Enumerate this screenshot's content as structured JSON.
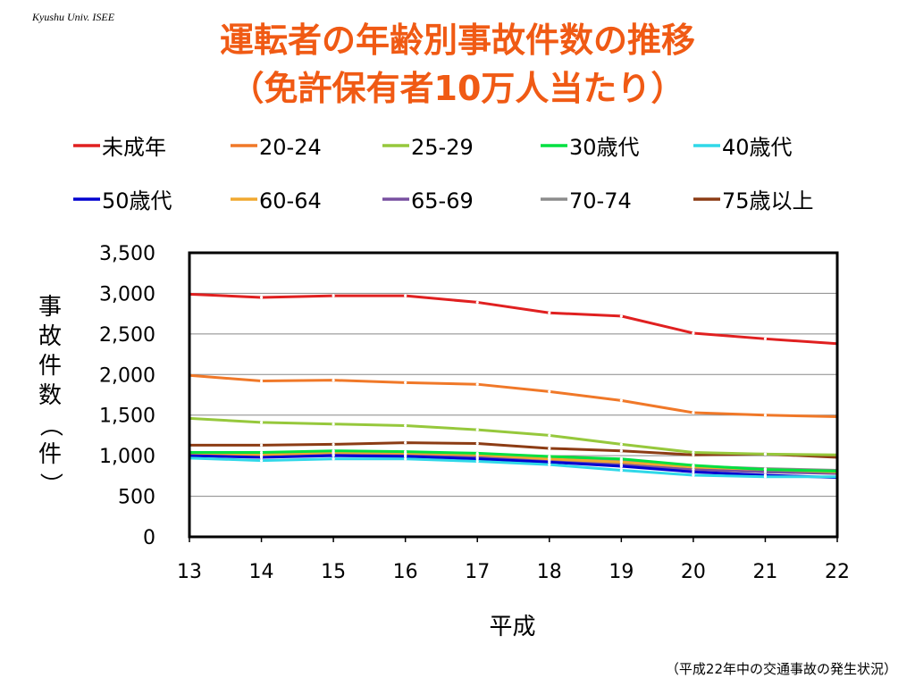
{
  "brand": "Kyushu Univ. ISEE",
  "title_line1": "運転者の年齢別事故件数の推移",
  "title_line2": "（免許保有者10万人当たり）",
  "source": "（平成22年中の交通事故の発生状況）",
  "chart_data": {
    "type": "line",
    "title": "運転者の年齢別事故件数の推移（免許保有者10万人当たり）",
    "xlabel": "平成",
    "ylabel": "事故件数（件）",
    "x": [
      "13",
      "14",
      "15",
      "16",
      "17",
      "18",
      "19",
      "20",
      "21",
      "22"
    ],
    "yticks": [
      "0",
      "500",
      "1,000",
      "1,500",
      "2,000",
      "2,500",
      "3,000",
      "3,500"
    ],
    "ylim": [
      0,
      3500
    ],
    "grid": true,
    "legend": "top",
    "series": [
      {
        "name": "未成年",
        "color": "#e02020",
        "values": [
          2990,
          2950,
          2970,
          2970,
          2890,
          2760,
          2720,
          2510,
          2440,
          2380
        ]
      },
      {
        "name": "20-24",
        "color": "#f07828",
        "values": [
          1990,
          1920,
          1930,
          1900,
          1880,
          1790,
          1680,
          1530,
          1500,
          1480
        ]
      },
      {
        "name": "25-29",
        "color": "#96c83c",
        "values": [
          1460,
          1410,
          1390,
          1370,
          1320,
          1250,
          1140,
          1040,
          1020,
          1010
        ]
      },
      {
        "name": "30歳代",
        "color": "#00e040",
        "values": [
          1040,
          1040,
          1060,
          1050,
          1030,
          990,
          960,
          880,
          830,
          810
        ]
      },
      {
        "name": "40歳代",
        "color": "#30d8e8",
        "values": [
          970,
          940,
          960,
          960,
          930,
          890,
          820,
          760,
          740,
          740
        ]
      },
      {
        "name": "50歳代",
        "color": "#0000d0",
        "values": [
          1000,
          980,
          1000,
          990,
          960,
          920,
          870,
          800,
          760,
          730
        ]
      },
      {
        "name": "60-64",
        "color": "#f0a830",
        "values": [
          1020,
          1010,
          1040,
          1030,
          1010,
          960,
          920,
          860,
          830,
          800
        ]
      },
      {
        "name": "65-69",
        "color": "#7850a0",
        "values": [
          1000,
          990,
          1010,
          1000,
          980,
          940,
          890,
          830,
          800,
          780
        ]
      },
      {
        "name": "70-74",
        "color": "#8c8c8c",
        "values": [
          1030,
          1010,
          1030,
          1020,
          1010,
          970,
          940,
          870,
          840,
          820
        ]
      },
      {
        "name": "75歳以上",
        "color": "#8c3c14",
        "values": [
          1130,
          1130,
          1140,
          1160,
          1150,
          1090,
          1060,
          1010,
          1020,
          980
        ]
      }
    ]
  }
}
